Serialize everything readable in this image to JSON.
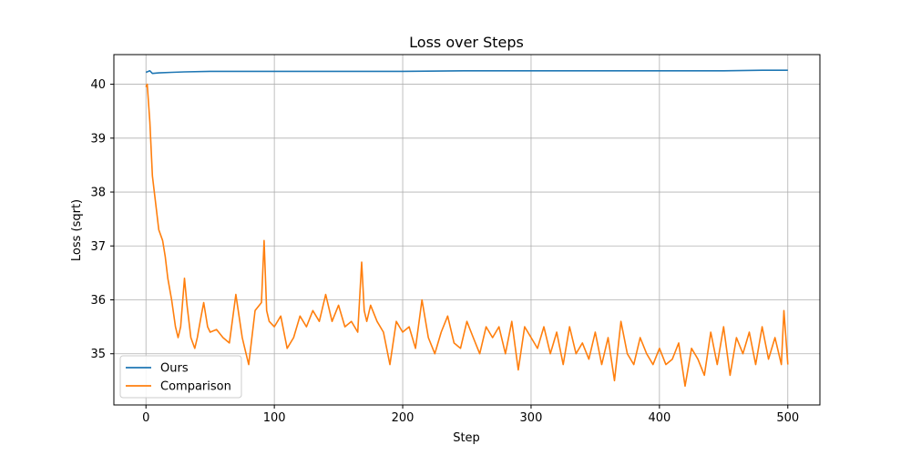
{
  "chart_data": {
    "type": "line",
    "title": "Loss over Steps",
    "xlabel": "Step",
    "ylabel": "Loss (sqrt)",
    "xlim": [
      -25,
      525
    ],
    "ylim": [
      34.05,
      40.55
    ],
    "xticks": [
      0,
      100,
      200,
      300,
      400,
      500
    ],
    "yticks": [
      35,
      36,
      37,
      38,
      39,
      40
    ],
    "grid": true,
    "legend_position": "lower-left",
    "series": [
      {
        "name": "Ours",
        "color": "#1f77b4",
        "x": [
          0,
          3,
          5,
          10,
          20,
          30,
          50,
          100,
          150,
          200,
          250,
          300,
          350,
          400,
          450,
          480,
          500
        ],
        "y": [
          40.22,
          40.25,
          40.2,
          40.21,
          40.22,
          40.23,
          40.24,
          40.24,
          40.24,
          40.24,
          40.25,
          40.25,
          40.25,
          40.25,
          40.25,
          40.26,
          40.26
        ]
      },
      {
        "name": "Comparison",
        "color": "#ff7f0e",
        "x": [
          0,
          1,
          3,
          5,
          7,
          10,
          13,
          15,
          17,
          20,
          23,
          25,
          27,
          30,
          32,
          35,
          38,
          40,
          43,
          45,
          48,
          50,
          55,
          60,
          65,
          70,
          75,
          77,
          80,
          85,
          90,
          92,
          94,
          96,
          100,
          105,
          110,
          115,
          120,
          125,
          130,
          135,
          140,
          145,
          150,
          155,
          160,
          165,
          168,
          170,
          172,
          175,
          180,
          185,
          190,
          195,
          200,
          205,
          210,
          215,
          220,
          225,
          230,
          235,
          240,
          245,
          250,
          255,
          260,
          265,
          270,
          275,
          280,
          285,
          290,
          295,
          300,
          305,
          310,
          315,
          320,
          325,
          330,
          335,
          340,
          345,
          350,
          355,
          360,
          365,
          370,
          375,
          380,
          385,
          390,
          395,
          400,
          405,
          410,
          415,
          420,
          425,
          430,
          435,
          440,
          445,
          450,
          455,
          460,
          465,
          470,
          475,
          480,
          485,
          490,
          495,
          497,
          500
        ],
        "y": [
          39.95,
          40.0,
          39.3,
          38.3,
          37.9,
          37.3,
          37.1,
          36.8,
          36.4,
          36.0,
          35.5,
          35.3,
          35.5,
          36.4,
          35.9,
          35.3,
          35.1,
          35.3,
          35.7,
          35.95,
          35.5,
          35.4,
          35.45,
          35.3,
          35.2,
          36.1,
          35.3,
          35.1,
          34.8,
          35.8,
          35.95,
          37.1,
          35.8,
          35.6,
          35.5,
          35.7,
          35.1,
          35.3,
          35.7,
          35.5,
          35.8,
          35.6,
          36.1,
          35.6,
          35.9,
          35.5,
          35.6,
          35.4,
          36.7,
          35.8,
          35.6,
          35.9,
          35.6,
          35.4,
          34.8,
          35.6,
          35.4,
          35.5,
          35.1,
          36.0,
          35.3,
          35.0,
          35.4,
          35.7,
          35.2,
          35.1,
          35.6,
          35.3,
          35.0,
          35.5,
          35.3,
          35.5,
          35.0,
          35.6,
          34.7,
          35.5,
          35.3,
          35.1,
          35.5,
          35.0,
          35.4,
          34.8,
          35.5,
          35.0,
          35.2,
          34.9,
          35.4,
          34.8,
          35.3,
          34.5,
          35.6,
          35.0,
          34.8,
          35.3,
          35.0,
          34.8,
          35.1,
          34.8,
          34.9,
          35.2,
          34.4,
          35.1,
          34.9,
          34.6,
          35.4,
          34.8,
          35.5,
          34.6,
          35.3,
          35.0,
          35.4,
          34.8,
          35.5,
          34.9,
          35.3,
          34.8,
          35.8,
          34.8
        ]
      }
    ]
  }
}
